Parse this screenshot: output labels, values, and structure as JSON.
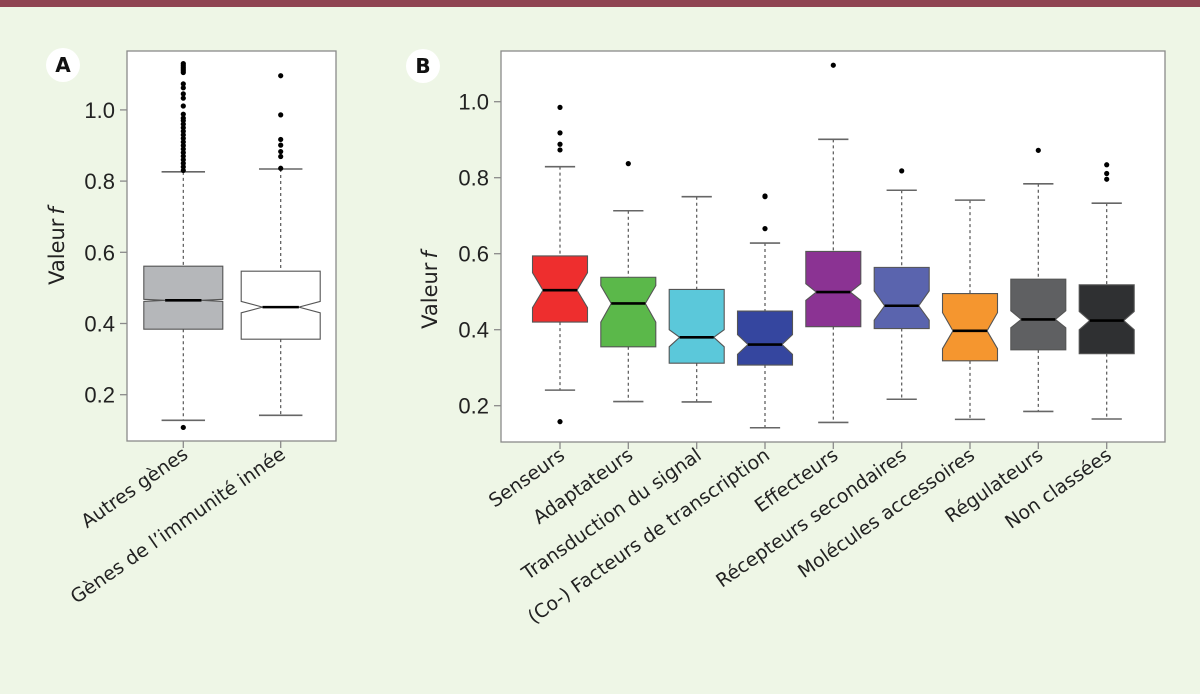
{
  "colors": {
    "background": "#eef6e6",
    "top_bar": "#8f4452"
  },
  "chart_data": [
    {
      "panel": "A",
      "type": "boxplot",
      "notched": true,
      "ylabel": "Valeur f",
      "ylim": [
        0.07,
        1.15
      ],
      "yticks": [
        0.2,
        0.4,
        0.6,
        0.8,
        1.0
      ],
      "ytick_labels": [
        "0.2",
        "0.4",
        "0.6",
        "0.8",
        "1.0"
      ],
      "grid": false,
      "categories": [
        "Autres gènes",
        "Gènes de l’immunité innée"
      ],
      "boxes": [
        {
          "name": "Autres gènes",
          "color": "#b5b7ba",
          "q1": 0.384,
          "median": 0.465,
          "q3": 0.561,
          "whisker_low": 0.128,
          "whisker_high": 0.826,
          "notch_low": 0.462,
          "notch_high": 0.468,
          "outliers": [
            0.108,
            0.83,
            0.84,
            0.85,
            0.86,
            0.87,
            0.88,
            0.89,
            0.9,
            0.91,
            0.92,
            0.93,
            0.94,
            0.95,
            0.96,
            0.97,
            0.977,
            0.988,
            1.011,
            1.033,
            1.045,
            1.062,
            1.073,
            1.105,
            1.11,
            1.115,
            1.12,
            1.125,
            1.13
          ]
        },
        {
          "name": "Gènes de l’immunité innée",
          "color": "#ffffff",
          "q1": 0.356,
          "median": 0.446,
          "q3": 0.547,
          "whisker_low": 0.142,
          "whisker_high": 0.834,
          "notch_low": 0.43,
          "notch_high": 0.462,
          "outliers": [
            0.836,
            0.869,
            0.883,
            0.901,
            0.917,
            0.986,
            1.096
          ]
        }
      ]
    },
    {
      "panel": "B",
      "type": "boxplot",
      "notched": true,
      "ylabel": "Valeur f",
      "ylim": [
        0.1,
        1.13
      ],
      "yticks": [
        0.2,
        0.4,
        0.6,
        0.8,
        1.0
      ],
      "ytick_labels": [
        "0.2",
        "0.4",
        "0.6",
        "0.8",
        "1.0"
      ],
      "grid": false,
      "categories": [
        "Senseurs",
        "Adaptateurs",
        "Transduction du signal",
        "(Co-) Facteurs de transcription",
        "Effecteurs",
        "Récepteurs secondaires",
        "Molécules accessoires",
        "Régulateurs",
        "Non classées"
      ],
      "boxes": [
        {
          "name": "Senseurs",
          "color": "#ee2e2e",
          "q1": 0.42,
          "median": 0.504,
          "q3": 0.594,
          "whisker_low": 0.241,
          "whisker_high": 0.829,
          "notch_low": 0.458,
          "notch_high": 0.55,
          "outliers": [
            0.158,
            0.873,
            0.888,
            0.918,
            0.985
          ]
        },
        {
          "name": "Adaptateurs",
          "color": "#5bb84a",
          "q1": 0.355,
          "median": 0.469,
          "q3": 0.538,
          "whisker_low": 0.211,
          "whisker_high": 0.713,
          "notch_low": 0.42,
          "notch_high": 0.516,
          "outliers": [
            0.837
          ]
        },
        {
          "name": "Transduction du signal",
          "color": "#5bc8da",
          "q1": 0.312,
          "median": 0.38,
          "q3": 0.506,
          "whisker_low": 0.21,
          "whisker_high": 0.75,
          "notch_low": 0.355,
          "notch_high": 0.4,
          "outliers": []
        },
        {
          "name": "(Co-) Facteurs de transcription",
          "color": "#35469f",
          "q1": 0.307,
          "median": 0.361,
          "q3": 0.449,
          "whisker_low": 0.142,
          "whisker_high": 0.628,
          "notch_low": 0.335,
          "notch_high": 0.387,
          "outliers": [
            0.666,
            0.75,
            0.752
          ]
        },
        {
          "name": "Effecteurs",
          "color": "#8b3393",
          "q1": 0.408,
          "median": 0.499,
          "q3": 0.606,
          "whisker_low": 0.156,
          "whisker_high": 0.901,
          "notch_low": 0.477,
          "notch_high": 0.521,
          "outliers": [
            1.096
          ]
        },
        {
          "name": "Récepteurs secondaires",
          "color": "#5a64ae",
          "q1": 0.403,
          "median": 0.463,
          "q3": 0.564,
          "whisker_low": 0.217,
          "whisker_high": 0.767,
          "notch_low": 0.425,
          "notch_high": 0.502,
          "outliers": [
            0.818
          ]
        },
        {
          "name": "Molécules accessoires",
          "color": "#f5962f",
          "q1": 0.318,
          "median": 0.397,
          "q3": 0.495,
          "whisker_low": 0.164,
          "whisker_high": 0.741,
          "notch_low": 0.35,
          "notch_high": 0.445,
          "outliers": []
        },
        {
          "name": "Régulateurs",
          "color": "#5f6062",
          "q1": 0.347,
          "median": 0.427,
          "q3": 0.533,
          "whisker_low": 0.185,
          "whisker_high": 0.784,
          "notch_low": 0.405,
          "notch_high": 0.45,
          "outliers": [
            0.872
          ]
        },
        {
          "name": "Non classées",
          "color": "#2f3032",
          "q1": 0.337,
          "median": 0.424,
          "q3": 0.518,
          "whisker_low": 0.165,
          "whisker_high": 0.733,
          "notch_low": 0.4,
          "notch_high": 0.448,
          "outliers": [
            0.796,
            0.811,
            0.834
          ]
        }
      ]
    }
  ],
  "panels": {
    "A": {
      "badge": "A",
      "ylabel_main": "Valeur",
      "ylabel_var": "f"
    },
    "B": {
      "badge": "B",
      "ylabel_main": "Valeur",
      "ylabel_var": "f"
    }
  }
}
